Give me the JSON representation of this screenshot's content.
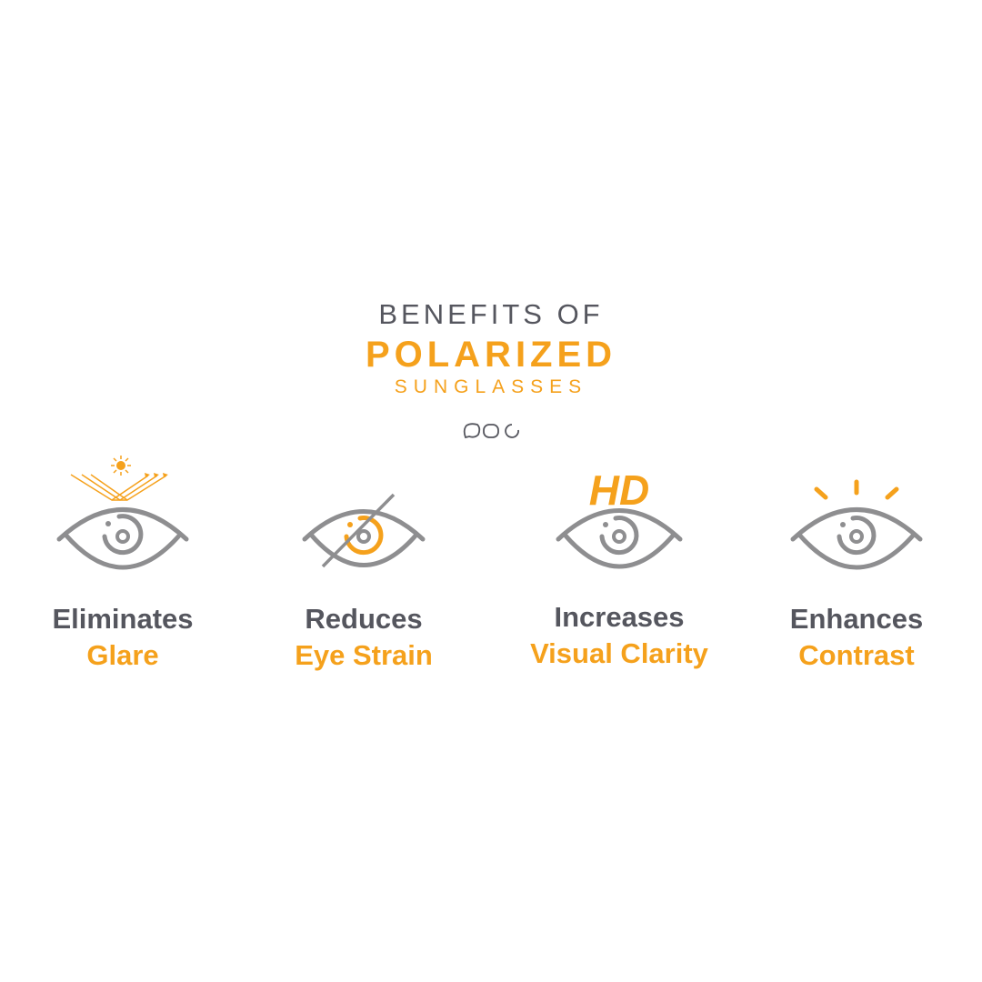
{
  "header": {
    "line1": "BENEFITS OF",
    "line2": "POLARIZED",
    "line3": "SUNGLASSES"
  },
  "colors": {
    "accent": "#f5a11c",
    "text": "#55565e",
    "icon": "#8e8e90"
  },
  "benefits": [
    {
      "verb": "Eliminates",
      "object": "Glare",
      "icon": "eye-glare-icon"
    },
    {
      "verb": "Reduces",
      "object": "Eye Strain",
      "icon": "eye-strain-icon"
    },
    {
      "verb": "Increases",
      "object": "Visual Clarity",
      "icon": "eye-hd-icon",
      "badge": "HD"
    },
    {
      "verb": "Enhances",
      "object": "Contrast",
      "icon": "eye-contrast-icon"
    }
  ]
}
